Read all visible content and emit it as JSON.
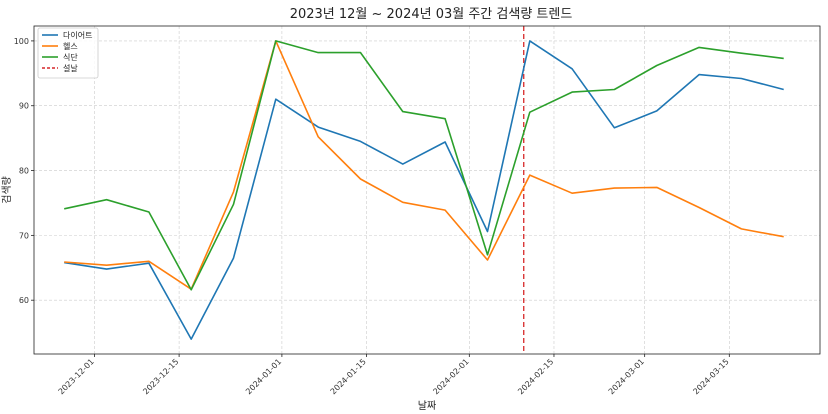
{
  "chart_data": {
    "type": "line",
    "title": "2023년 12월 ~ 2024년 03월 주간 검색량 트렌드",
    "xlabel": "날짜",
    "ylabel": "검색량",
    "x": [
      "2023-11-26",
      "2023-12-03",
      "2023-12-10",
      "2023-12-17",
      "2023-12-24",
      "2023-12-31",
      "2024-01-07",
      "2024-01-14",
      "2024-01-21",
      "2024-01-28",
      "2024-02-04",
      "2024-02-11",
      "2024-02-18",
      "2024-02-25",
      "2024-03-03",
      "2024-03-10",
      "2024-03-17",
      "2024-03-24"
    ],
    "xlim": [
      "2023-11-21",
      "2024-03-30"
    ],
    "ylim": [
      51.7,
      102.3
    ],
    "x_ticks": [
      "2023-12-01",
      "2023-12-15",
      "2024-01-01",
      "2024-01-15",
      "2024-02-01",
      "2024-02-15",
      "2024-03-01",
      "2024-03-15"
    ],
    "y_ticks": [
      60,
      70,
      80,
      90,
      100
    ],
    "grid": true,
    "legend_position": "top-left",
    "series": [
      {
        "name": "다이어트",
        "color": "#1f77b4",
        "values": [
          65.8,
          64.8,
          65.7,
          54.0,
          66.5,
          91.0,
          86.7,
          84.5,
          81.0,
          84.4,
          70.6,
          100.0,
          95.7,
          86.6,
          89.2,
          94.8,
          94.2,
          92.5
        ]
      },
      {
        "name": "헬스",
        "color": "#ff7f0e",
        "values": [
          65.9,
          65.4,
          66.0,
          61.7,
          76.7,
          100.0,
          85.2,
          78.7,
          75.1,
          73.9,
          66.2,
          79.3,
          76.5,
          77.3,
          77.4,
          74.3,
          71.0,
          69.8
        ]
      },
      {
        "name": "식단",
        "color": "#2ca02c",
        "values": [
          74.1,
          75.5,
          73.6,
          61.6,
          74.8,
          100.0,
          98.2,
          98.2,
          89.1,
          88.0,
          67.0,
          89.0,
          92.1,
          92.5,
          96.2,
          99.0,
          98.1,
          97.3
        ]
      }
    ],
    "vline": {
      "name": "설날",
      "x": "2024-02-10",
      "color": "#d62728",
      "style": "dashed"
    }
  }
}
